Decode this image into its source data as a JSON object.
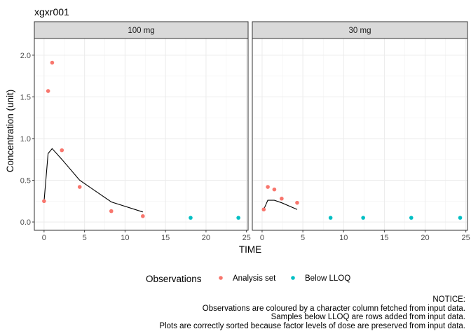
{
  "chart_data": {
    "type": "scatter",
    "title": "xgxr001",
    "xlabel": "TIME",
    "ylabel": "Concentration (unit)",
    "xlim": [
      -1.2,
      25.2
    ],
    "ylim": [
      -0.1,
      2.2
    ],
    "xticks": [
      0,
      5,
      10,
      15,
      20,
      25
    ],
    "yticks": [
      0.0,
      0.5,
      1.0,
      1.5,
      2.0
    ],
    "ytick_labels": [
      "0.0",
      "0.5",
      "1.0",
      "1.5",
      "2.0"
    ],
    "grid": true,
    "legend_position": "bottom",
    "legend_title": "Observations",
    "series_colors": {
      "Analysis set": "#F8766D",
      "Below LLOQ": "#00BFC4"
    },
    "line_color": "#000000",
    "panels": [
      {
        "strip": "100 mg",
        "points": [
          {
            "x": 0.0,
            "y": 0.25,
            "group": "Analysis set"
          },
          {
            "x": 0.5,
            "y": 1.57,
            "group": "Analysis set"
          },
          {
            "x": 1.0,
            "y": 1.91,
            "group": "Analysis set"
          },
          {
            "x": 2.2,
            "y": 0.86,
            "group": "Analysis set"
          },
          {
            "x": 4.4,
            "y": 0.42,
            "group": "Analysis set"
          },
          {
            "x": 8.3,
            "y": 0.13,
            "group": "Analysis set"
          },
          {
            "x": 12.2,
            "y": 0.07,
            "group": "Analysis set"
          },
          {
            "x": 18.1,
            "y": 0.05,
            "group": "Below LLOQ"
          },
          {
            "x": 24.0,
            "y": 0.05,
            "group": "Below LLOQ"
          }
        ],
        "line": [
          {
            "x": 0.0,
            "y": 0.25
          },
          {
            "x": 0.5,
            "y": 0.82
          },
          {
            "x": 1.0,
            "y": 0.88
          },
          {
            "x": 2.2,
            "y": 0.75
          },
          {
            "x": 4.4,
            "y": 0.5
          },
          {
            "x": 8.3,
            "y": 0.24
          },
          {
            "x": 12.2,
            "y": 0.12
          }
        ]
      },
      {
        "strip": "30 mg",
        "points": [
          {
            "x": 0.2,
            "y": 0.15,
            "group": "Analysis set"
          },
          {
            "x": 0.7,
            "y": 0.42,
            "group": "Analysis set"
          },
          {
            "x": 1.5,
            "y": 0.39,
            "group": "Analysis set"
          },
          {
            "x": 2.4,
            "y": 0.28,
            "group": "Analysis set"
          },
          {
            "x": 4.3,
            "y": 0.23,
            "group": "Analysis set"
          },
          {
            "x": 8.4,
            "y": 0.05,
            "group": "Below LLOQ"
          },
          {
            "x": 12.4,
            "y": 0.05,
            "group": "Below LLOQ"
          },
          {
            "x": 18.3,
            "y": 0.05,
            "group": "Below LLOQ"
          },
          {
            "x": 24.3,
            "y": 0.05,
            "group": "Below LLOQ"
          }
        ],
        "line": [
          {
            "x": 0.2,
            "y": 0.15
          },
          {
            "x": 0.7,
            "y": 0.26
          },
          {
            "x": 1.5,
            "y": 0.26
          },
          {
            "x": 2.4,
            "y": 0.23
          },
          {
            "x": 4.3,
            "y": 0.15
          }
        ]
      }
    ],
    "legend_entries": [
      "Analysis set",
      "Below LLOQ"
    ]
  },
  "notice": [
    "NOTICE:",
    "Observations are coloured by a character column fetched from input data.",
    "Samples below LLOQ are rows added from input data.",
    "Plots are correctly sorted because factor levels of dose are preserved from input data."
  ]
}
